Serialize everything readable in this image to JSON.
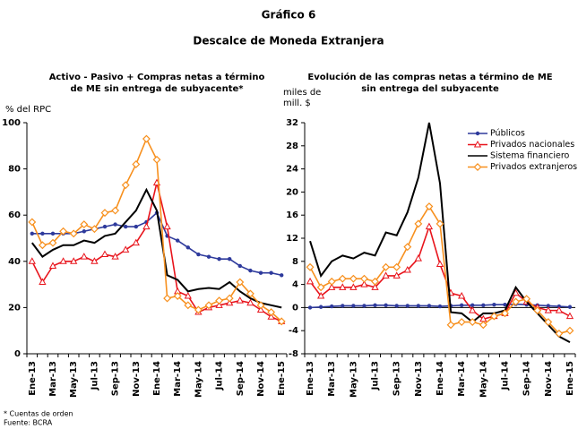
{
  "title": "Gráfico 6",
  "subtitle": "Descalce de Moneda Extranjera",
  "notes": [
    "* Cuentas de orden",
    "Fuente: BCRA"
  ],
  "chart_data": [
    {
      "type": "line",
      "title": [
        "Activo - Pasivo + Compras netas a término",
        "de ME sin entrega de subyacente*"
      ],
      "y_label": [
        "% del RPC"
      ],
      "categories": [
        "Ene-13",
        null,
        "Mar-13",
        null,
        "May-13",
        null,
        "Jul-13",
        null,
        "Sep-13",
        null,
        "Nov-13",
        null,
        "Ene-14",
        null,
        "Mar-14",
        null,
        "May-14",
        null,
        "Jul-14",
        null,
        "Sep-14",
        null,
        "Nov-14",
        null,
        "Ene-15"
      ],
      "ylim": [
        0,
        100
      ],
      "yticks": [
        0,
        20,
        40,
        60,
        80,
        100
      ],
      "series": [
        {
          "color": "#2e3a9c",
          "marker": "circle",
          "values": [
            52,
            52,
            52,
            52,
            52,
            53,
            54,
            55,
            56,
            55,
            55,
            57,
            61,
            51,
            49,
            46,
            43,
            42,
            41,
            41,
            38,
            36,
            35,
            35,
            34
          ]
        },
        {
          "color": "#e8141c",
          "marker": "triangle",
          "values": [
            40,
            31,
            38,
            40,
            40,
            42,
            40,
            43,
            42,
            45,
            48,
            55,
            74,
            55,
            27,
            25,
            18,
            20,
            21,
            22,
            23,
            22,
            19,
            16,
            14
          ]
        },
        {
          "color": "#000000",
          "marker": "none",
          "values": [
            48,
            42,
            45,
            47,
            47,
            49,
            48,
            51,
            52,
            57,
            62,
            71,
            62,
            34,
            32,
            27,
            28,
            28.5,
            28,
            31,
            27,
            24,
            22,
            21,
            20
          ]
        },
        {
          "color": "#f7901e",
          "marker": "diamond",
          "values": [
            57,
            47,
            48,
            53,
            52,
            56,
            54,
            61,
            62,
            73,
            82,
            93,
            84,
            24,
            25,
            21,
            19,
            21,
            23,
            24,
            31,
            26,
            21,
            18,
            14
          ]
        }
      ]
    },
    {
      "type": "line",
      "title": [
        "Evolución de las compras netas a término de ME",
        "sin entrega del subyacente"
      ],
      "y_label": [
        "miles de",
        "mill. $"
      ],
      "categories": [
        "Ene-13",
        null,
        "Mar-13",
        null,
        "May-13",
        null,
        "Jul-13",
        null,
        "Sep-13",
        null,
        "Nov-13",
        null,
        "Ene-14",
        null,
        "Mar-14",
        null,
        "May-14",
        null,
        "Jul-14",
        null,
        "Sep-14",
        null,
        "Nov-14",
        null,
        "Ene-15"
      ],
      "ylim": [
        -8,
        32
      ],
      "yticks": [
        -8,
        -4,
        0,
        4,
        8,
        12,
        16,
        20,
        24,
        28,
        32
      ],
      "legend": "upper right",
      "series": [
        {
          "name": "Públicos",
          "color": "#2e3a9c",
          "marker": "circle",
          "values": [
            0,
            0.1,
            0.2,
            0.3,
            0.3,
            0.3,
            0.4,
            0.4,
            0.3,
            0.3,
            0.3,
            0.3,
            0.2,
            0.3,
            0.4,
            0.4,
            0.4,
            0.5,
            0.5,
            0.6,
            0.5,
            0.4,
            0.3,
            0.2,
            0.1
          ]
        },
        {
          "name": "Privados nacionales",
          "color": "#e8141c",
          "marker": "triangle",
          "values": [
            4.5,
            2,
            3.5,
            3.5,
            3.5,
            4,
            3.5,
            5.5,
            5.5,
            6.5,
            8.5,
            14,
            7.5,
            2.5,
            2,
            -0.5,
            -2,
            -1.5,
            -1,
            2.5,
            1,
            0,
            -0.5,
            -0.5,
            -1.5
          ]
        },
        {
          "name": "Sistema financiero",
          "color": "#000000",
          "marker": "none",
          "values": [
            11.5,
            5.5,
            8,
            9,
            8.5,
            9.5,
            9,
            13,
            12.5,
            16.5,
            22.5,
            32,
            21.5,
            -0.8,
            -1,
            -2.5,
            -1,
            -1,
            -0.5,
            3.5,
            1,
            -1,
            -3,
            -5,
            -6
          ]
        },
        {
          "name": "Privados extranjeros",
          "color": "#f7901e",
          "marker": "diamond",
          "values": [
            7,
            3.5,
            4.5,
            5,
            5,
            5,
            4.5,
            7,
            7,
            10.5,
            14.5,
            17.5,
            14.5,
            -3,
            -2.5,
            -2.5,
            -3,
            -1.5,
            -1,
            1,
            1.5,
            -0.5,
            -2.5,
            -4.5,
            -4
          ]
        }
      ]
    }
  ]
}
